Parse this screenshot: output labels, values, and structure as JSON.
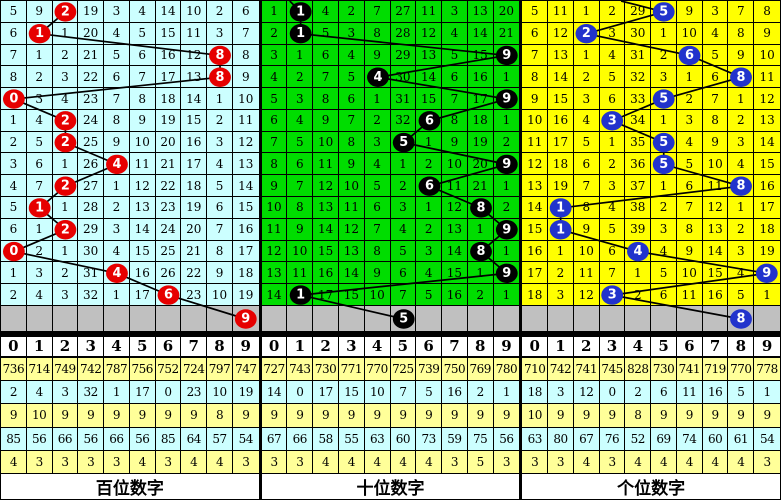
{
  "digits": [
    "0",
    "1",
    "2",
    "3",
    "4",
    "5",
    "6",
    "7",
    "8",
    "9"
  ],
  "colors": {
    "pending_row": "#C0C0C0",
    "stats_yellow": "#FFFF99",
    "stats_cyan": "#CCFFFF",
    "grid_line": "#000000",
    "trend_line": "#000000"
  },
  "panels": [
    {
      "id": "hundreds",
      "footer": "百位数字",
      "bg": "#CCFFFF",
      "circle_color": "#E60000",
      "stub": null,
      "grid_rows": [
        [
          5,
          9,
          null,
          19,
          3,
          4,
          14,
          10,
          2,
          6
        ],
        [
          6,
          null,
          1,
          20,
          4,
          5,
          15,
          11,
          3,
          7
        ],
        [
          7,
          1,
          2,
          21,
          5,
          6,
          16,
          12,
          null,
          8
        ],
        [
          8,
          2,
          3,
          22,
          6,
          7,
          17,
          13,
          null,
          9
        ],
        [
          null,
          3,
          4,
          23,
          7,
          8,
          18,
          14,
          1,
          10
        ],
        [
          1,
          4,
          null,
          24,
          8,
          9,
          19,
          15,
          2,
          11
        ],
        [
          2,
          5,
          null,
          25,
          9,
          10,
          20,
          16,
          3,
          12
        ],
        [
          3,
          6,
          1,
          26,
          null,
          11,
          21,
          17,
          4,
          13
        ],
        [
          4,
          7,
          null,
          27,
          1,
          12,
          22,
          18,
          5,
          14
        ],
        [
          5,
          null,
          1,
          28,
          2,
          13,
          23,
          19,
          6,
          15
        ],
        [
          6,
          1,
          null,
          29,
          3,
          14,
          24,
          20,
          7,
          16
        ],
        [
          null,
          2,
          1,
          30,
          4,
          15,
          25,
          21,
          8,
          17
        ],
        [
          1,
          3,
          2,
          31,
          null,
          16,
          26,
          22,
          9,
          18
        ],
        [
          2,
          4,
          3,
          32,
          1,
          17,
          null,
          23,
          10,
          19
        ]
      ],
      "picks": [
        2,
        1,
        8,
        8,
        0,
        2,
        2,
        4,
        2,
        1,
        2,
        0,
        4,
        6
      ],
      "gray_pick": 9,
      "stats": [
        [
          736,
          714,
          749,
          742,
          787,
          756,
          752,
          724,
          797,
          747
        ],
        [
          2,
          4,
          3,
          32,
          1,
          17,
          0,
          23,
          10,
          19
        ],
        [
          9,
          10,
          9,
          9,
          9,
          9,
          9,
          9,
          8,
          9
        ],
        [
          85,
          56,
          66,
          56,
          66,
          56,
          85,
          64,
          57,
          54
        ],
        [
          4,
          3,
          3,
          3,
          3,
          4,
          3,
          4,
          4,
          3
        ]
      ]
    },
    {
      "id": "tens",
      "footer": "十位数字",
      "bg": "#00DD00",
      "circle_color": "#000000",
      "stub": [
        28,
        0
      ],
      "grid_rows": [
        [
          1,
          null,
          4,
          2,
          7,
          27,
          11,
          3,
          13,
          20
        ],
        [
          2,
          null,
          5,
          3,
          8,
          28,
          12,
          4,
          14,
          21
        ],
        [
          3,
          1,
          6,
          4,
          9,
          29,
          13,
          5,
          15,
          null
        ],
        [
          4,
          2,
          7,
          5,
          null,
          30,
          14,
          6,
          16,
          1
        ],
        [
          5,
          3,
          8,
          6,
          1,
          31,
          15,
          7,
          17,
          null
        ],
        [
          6,
          4,
          9,
          7,
          2,
          32,
          null,
          8,
          18,
          1
        ],
        [
          7,
          5,
          10,
          8,
          3,
          null,
          1,
          9,
          19,
          2
        ],
        [
          8,
          6,
          11,
          9,
          4,
          1,
          2,
          10,
          20,
          null
        ],
        [
          9,
          7,
          12,
          10,
          5,
          2,
          null,
          11,
          21,
          1
        ],
        [
          10,
          8,
          13,
          11,
          6,
          3,
          1,
          12,
          null,
          2
        ],
        [
          11,
          9,
          14,
          12,
          7,
          4,
          2,
          13,
          1,
          null
        ],
        [
          12,
          10,
          15,
          13,
          8,
          5,
          3,
          14,
          null,
          1
        ],
        [
          13,
          11,
          16,
          14,
          9,
          6,
          4,
          15,
          1,
          null
        ],
        [
          14,
          null,
          17,
          15,
          10,
          7,
          5,
          16,
          2,
          1
        ]
      ],
      "picks": [
        1,
        1,
        9,
        4,
        9,
        6,
        5,
        9,
        6,
        8,
        9,
        8,
        9,
        1
      ],
      "gray_pick": 5,
      "stats": [
        [
          727,
          743,
          730,
          771,
          770,
          725,
          739,
          750,
          769,
          780
        ],
        [
          14,
          0,
          17,
          15,
          10,
          7,
          5,
          16,
          2,
          1
        ],
        [
          9,
          9,
          9,
          9,
          9,
          9,
          9,
          9,
          9,
          9
        ],
        [
          67,
          66,
          58,
          55,
          63,
          60,
          73,
          59,
          75,
          56
        ],
        [
          3,
          3,
          4,
          4,
          4,
          4,
          4,
          3,
          5,
          3
        ]
      ]
    },
    {
      "id": "units",
      "footer": "个位数字",
      "bg": "#FFFF00",
      "circle_color": "#2233CC",
      "stub": [
        100,
        0
      ],
      "grid_rows": [
        [
          5,
          11,
          1,
          2,
          29,
          null,
          9,
          3,
          7,
          8
        ],
        [
          6,
          12,
          null,
          3,
          30,
          1,
          10,
          4,
          8,
          9
        ],
        [
          7,
          13,
          1,
          4,
          31,
          2,
          null,
          5,
          9,
          10
        ],
        [
          8,
          14,
          2,
          5,
          32,
          3,
          1,
          6,
          null,
          11
        ],
        [
          9,
          15,
          3,
          6,
          33,
          null,
          2,
          7,
          1,
          12
        ],
        [
          10,
          16,
          4,
          null,
          34,
          1,
          3,
          8,
          2,
          13
        ],
        [
          11,
          17,
          5,
          1,
          35,
          null,
          4,
          9,
          3,
          14
        ],
        [
          12,
          18,
          6,
          2,
          36,
          null,
          5,
          10,
          4,
          15
        ],
        [
          13,
          19,
          7,
          3,
          37,
          1,
          6,
          11,
          null,
          16
        ],
        [
          14,
          null,
          8,
          4,
          38,
          2,
          7,
          12,
          1,
          17
        ],
        [
          15,
          null,
          9,
          5,
          39,
          3,
          8,
          13,
          2,
          18
        ],
        [
          16,
          1,
          10,
          6,
          null,
          4,
          9,
          14,
          3,
          19
        ],
        [
          17,
          2,
          11,
          7,
          1,
          5,
          10,
          15,
          4,
          null
        ],
        [
          18,
          3,
          12,
          null,
          2,
          6,
          11,
          16,
          5,
          1
        ]
      ],
      "picks": [
        5,
        2,
        6,
        8,
        5,
        3,
        5,
        5,
        8,
        1,
        1,
        4,
        9,
        3
      ],
      "gray_pick": 8,
      "stats": [
        [
          710,
          742,
          741,
          745,
          828,
          730,
          741,
          719,
          770,
          778
        ],
        [
          18,
          3,
          12,
          0,
          2,
          6,
          11,
          16,
          5,
          1
        ],
        [
          10,
          9,
          9,
          9,
          8,
          9,
          9,
          9,
          9,
          9
        ],
        [
          63,
          80,
          67,
          76,
          52,
          69,
          74,
          60,
          61,
          54
        ],
        [
          3,
          3,
          4,
          3,
          4,
          4,
          4,
          4,
          4,
          3
        ]
      ]
    }
  ],
  "chart_data": {
    "type": "table",
    "categories": [
      "百位数字",
      "十位数字",
      "个位数字"
    ],
    "series": [
      {
        "name": "百位数字",
        "values": [
          2,
          1,
          8,
          8,
          0,
          2,
          2,
          4,
          2,
          1,
          2,
          0,
          4,
          6
        ],
        "pending_mark": 9
      },
      {
        "name": "十位数字",
        "values": [
          1,
          1,
          9,
          4,
          9,
          6,
          5,
          9,
          6,
          8,
          9,
          8,
          9,
          1
        ],
        "pending_mark": 5
      },
      {
        "name": "个位数字",
        "values": [
          5,
          2,
          6,
          8,
          5,
          3,
          5,
          5,
          8,
          1,
          1,
          4,
          9,
          3
        ],
        "pending_mark": 8
      }
    ],
    "x_axis_digits": [
      "0",
      "1",
      "2",
      "3",
      "4",
      "5",
      "6",
      "7",
      "8",
      "9"
    ],
    "layout": {
      "rows_per_panel": 14,
      "grid": true,
      "legend": false
    }
  }
}
